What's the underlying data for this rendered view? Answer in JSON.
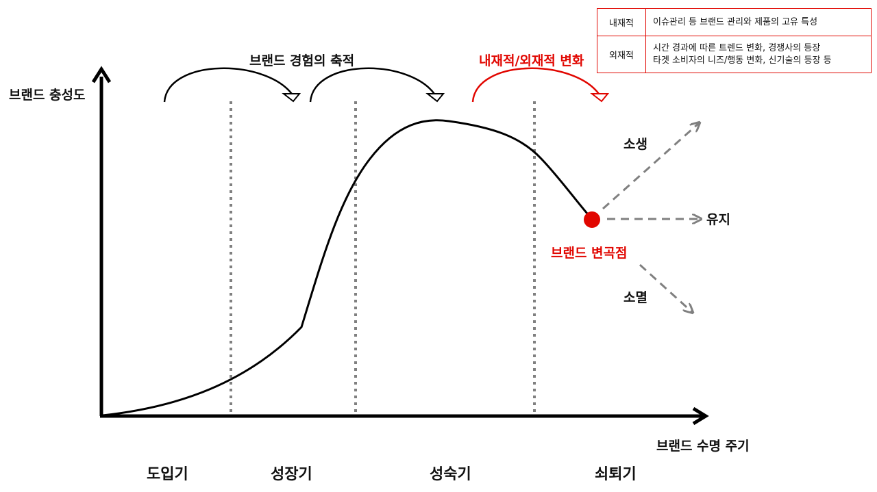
{
  "axes": {
    "y_label": "브랜드 충성도",
    "x_label": "브랜드 수명 주기"
  },
  "stages": [
    {
      "name": "도입기"
    },
    {
      "name": "성장기"
    },
    {
      "name": "성숙기"
    },
    {
      "name": "쇠퇴기"
    }
  ],
  "arcs": {
    "experience_label": "브랜드 경험의 축적",
    "change_label": "내재적/외재적 변화"
  },
  "inflection": {
    "label": "브랜드 변곡점"
  },
  "outcomes": {
    "revival": "소생",
    "maintain": "유지",
    "extinction": "소멸"
  },
  "legend": [
    {
      "key": "내재적",
      "lines": [
        "이슈관리 등 브랜드 관리와 제품의 고유 특성"
      ]
    },
    {
      "key": "외재적",
      "lines": [
        "시간 경과에 따른 트렌드 변화, 경쟁사의 등장",
        "타겟 소비자의 니즈/행동 변화, 신기술의 등장 등"
      ]
    }
  ],
  "colors": {
    "curve": "#000000",
    "accent": "#e10600",
    "divider": "#808080",
    "outcome_arrow": "#808080"
  }
}
